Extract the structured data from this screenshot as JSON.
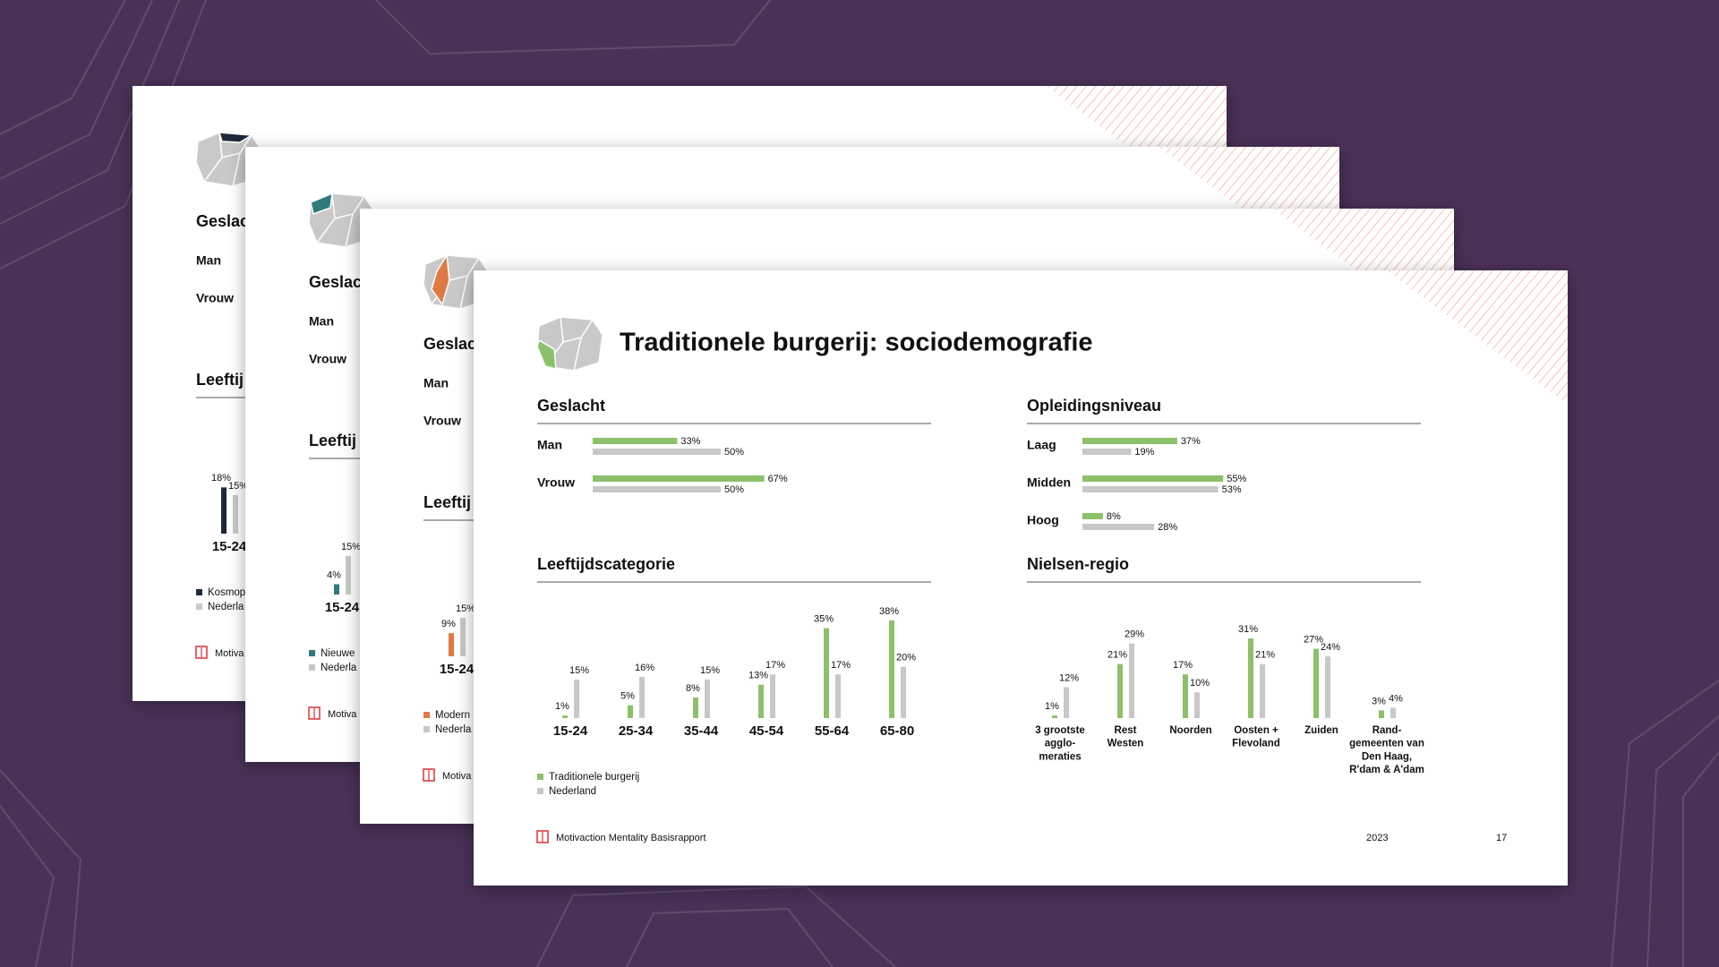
{
  "background_slides": [
    {
      "heading": "Geslac",
      "rows": [
        "Man",
        "Vrouw"
      ],
      "section": "Leeftij",
      "footer": "Motiva",
      "chart_data": {
        "type": "bar",
        "categories": [
          "15-24"
        ],
        "series": [
          {
            "name": "Kosmop",
            "color": "#1f2a38",
            "values": [
              18
            ],
            "value_labels": [
              "18%"
            ]
          },
          {
            "name": "Nederla",
            "color": "#c8c8c8",
            "values": [
              15
            ],
            "value_labels": [
              "15%"
            ]
          }
        ]
      }
    },
    {
      "heading": "Geslac",
      "rows": [
        "Man",
        "Vrouw"
      ],
      "section": "Leeftij",
      "footer": "Motiva",
      "chart_data": {
        "type": "bar",
        "categories": [
          "15-24"
        ],
        "series": [
          {
            "name": "Nieuwe",
            "color": "#2f7a7a",
            "values": [
              4
            ],
            "value_labels": [
              "4%"
            ]
          },
          {
            "name": "Nederla",
            "color": "#c8c8c8",
            "values": [
              15
            ],
            "value_labels": [
              "15%"
            ]
          }
        ]
      }
    },
    {
      "heading": "Geslac",
      "rows": [
        "Man",
        "Vrouw"
      ],
      "section": "Leeftij",
      "footer": "Motiva",
      "chart_data": {
        "type": "bar",
        "categories": [
          "15-24"
        ],
        "series": [
          {
            "name": "Modern",
            "color": "#e07a45",
            "values": [
              9
            ],
            "value_labels": [
              "9%"
            ]
          },
          {
            "name": "Nederla",
            "color": "#c8c8c8",
            "values": [
              15
            ],
            "value_labels": [
              "15%"
            ]
          }
        ]
      }
    }
  ],
  "slide": {
    "title": "Traditionele burgerij: sociodemografie",
    "footer": "Motivaction Mentality Basisrapport",
    "year": "2023",
    "page": "17"
  },
  "chart_data": [
    {
      "type": "hbar",
      "title": "Geslacht",
      "categories": [
        "Man",
        "Vrouw"
      ],
      "series": [
        {
          "color": "#8cc06a",
          "values": [
            33,
            67
          ],
          "value_labels": [
            "33%",
            "67%"
          ]
        },
        {
          "color": "#c8c8c8",
          "values": [
            50,
            50
          ],
          "value_labels": [
            "50%",
            "50%"
          ]
        }
      ]
    },
    {
      "type": "hbar",
      "title": "Opleidingsniveau",
      "categories": [
        "Laag",
        "Midden",
        "Hoog"
      ],
      "series": [
        {
          "color": "#8cc06a",
          "values": [
            37,
            55,
            8
          ],
          "value_labels": [
            "37%",
            "55%",
            "8%"
          ]
        },
        {
          "color": "#c8c8c8",
          "values": [
            19,
            53,
            28
          ],
          "value_labels": [
            "19%",
            "53%",
            "28%"
          ]
        }
      ]
    },
    {
      "type": "bar",
      "title": "Leeftijdscategorie",
      "categories": [
        "15-24",
        "25-34",
        "35-44",
        "45-54",
        "55-64",
        "65-80"
      ],
      "series": [
        {
          "name": "Traditionele burgerij",
          "color": "#8cc06a",
          "values": [
            1,
            5,
            8,
            13,
            35,
            38
          ],
          "value_labels": [
            "1%",
            "5%",
            "8%",
            "13%",
            "35%",
            "38%"
          ]
        },
        {
          "name": "Nederland",
          "color": "#c8c8c8",
          "values": [
            15,
            16,
            15,
            17,
            17,
            20
          ],
          "value_labels": [
            "15%",
            "16%",
            "15%",
            "17%",
            "17%",
            "20%"
          ]
        }
      ]
    },
    {
      "type": "bar",
      "title": "Nielsen-regio",
      "categories": [
        [
          "3 grootste",
          "agglo-",
          "meraties"
        ],
        [
          "Rest",
          "Westen"
        ],
        [
          "Noorden"
        ],
        [
          "Oosten +",
          "Flevoland"
        ],
        [
          "Zuiden"
        ],
        [
          "Rand-",
          "gemeenten van",
          "Den Haag,",
          "R'dam & A'dam"
        ]
      ],
      "series": [
        {
          "color": "#8cc06a",
          "values": [
            1,
            21,
            17,
            31,
            27,
            3
          ],
          "value_labels": [
            "1%",
            "21%",
            "17%",
            "31%",
            "27%",
            "3%"
          ]
        },
        {
          "color": "#c8c8c8",
          "values": [
            12,
            29,
            10,
            21,
            24,
            4
          ],
          "value_labels": [
            "12%",
            "29%",
            "10%",
            "21%",
            "24%",
            "4%"
          ]
        }
      ]
    }
  ]
}
